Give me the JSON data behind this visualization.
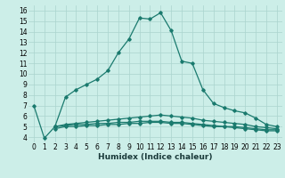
{
  "xlabel": "Humidex (Indice chaleur)",
  "bg_color": "#cceee8",
  "grid_color": "#aad4ce",
  "line_color": "#1a7a6e",
  "xlim": [
    -0.5,
    23.5
  ],
  "ylim": [
    3.5,
    16.5
  ],
  "yticks": [
    4,
    5,
    6,
    7,
    8,
    9,
    10,
    11,
    12,
    13,
    14,
    15,
    16
  ],
  "xticks": [
    0,
    1,
    2,
    3,
    4,
    5,
    6,
    7,
    8,
    9,
    10,
    11,
    12,
    13,
    14,
    15,
    16,
    17,
    18,
    19,
    20,
    21,
    22,
    23
  ],
  "main_line_x": [
    0,
    1,
    2,
    3,
    4,
    5,
    6,
    7,
    8,
    9,
    10,
    11,
    12,
    13,
    14,
    15,
    16,
    17,
    18,
    19,
    20,
    21,
    22,
    23
  ],
  "main_line_y": [
    7.0,
    3.9,
    5.0,
    7.8,
    8.5,
    9.0,
    9.5,
    10.3,
    12.0,
    13.3,
    15.3,
    15.2,
    15.8,
    14.1,
    11.2,
    11.0,
    8.5,
    7.2,
    6.8,
    6.5,
    6.3,
    5.8,
    5.2,
    5.0
  ],
  "line1_x": [
    2,
    3,
    4,
    5,
    6,
    7,
    8,
    9,
    10,
    11,
    12,
    13,
    14,
    15,
    16,
    17,
    18,
    19,
    20,
    21,
    22,
    23
  ],
  "line1_y": [
    5.0,
    5.2,
    5.3,
    5.4,
    5.5,
    5.6,
    5.7,
    5.8,
    5.9,
    6.0,
    6.1,
    6.0,
    5.9,
    5.8,
    5.6,
    5.5,
    5.4,
    5.3,
    5.2,
    5.0,
    4.9,
    4.8
  ],
  "line2_x": [
    2,
    3,
    4,
    5,
    6,
    7,
    8,
    9,
    10,
    11,
    12,
    13,
    14,
    15,
    16,
    17,
    18,
    19,
    20,
    21,
    22,
    23
  ],
  "line2_y": [
    5.0,
    5.1,
    5.2,
    5.2,
    5.3,
    5.3,
    5.4,
    5.4,
    5.5,
    5.5,
    5.5,
    5.4,
    5.4,
    5.3,
    5.2,
    5.1,
    5.0,
    5.0,
    4.9,
    4.8,
    4.7,
    4.7
  ],
  "line3_x": [
    2,
    3,
    4,
    5,
    6,
    7,
    8,
    9,
    10,
    11,
    12,
    13,
    14,
    15,
    16,
    17,
    18,
    19,
    20,
    21,
    22,
    23
  ],
  "line3_y": [
    4.8,
    5.0,
    5.0,
    5.1,
    5.1,
    5.2,
    5.2,
    5.3,
    5.3,
    5.4,
    5.4,
    5.3,
    5.3,
    5.2,
    5.1,
    5.0,
    5.0,
    4.9,
    4.8,
    4.7,
    4.6,
    4.6
  ],
  "xlabel_fontsize": 6.5,
  "tick_fontsize": 5.5
}
